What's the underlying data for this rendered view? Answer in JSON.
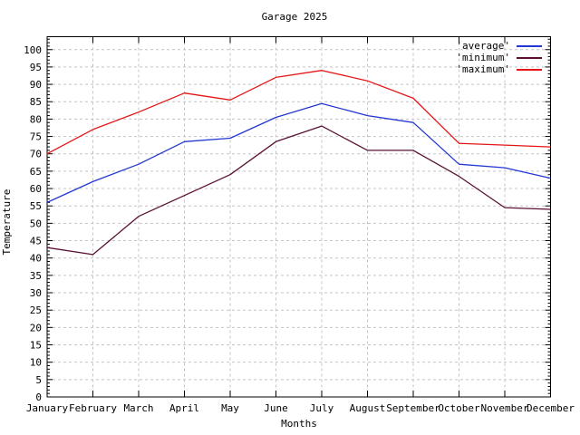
{
  "chart_data": {
    "type": "line",
    "title": "Garage 2025",
    "xlabel": "Months",
    "ylabel": "Temperature",
    "categories": [
      "January",
      "February",
      "March",
      "April",
      "May",
      "June",
      "July",
      "August",
      "September",
      "October",
      "November",
      "December"
    ],
    "series": [
      {
        "name": "average",
        "legend_label": "'average'",
        "color": "#2337d2",
        "values": [
          56,
          62,
          67,
          73.5,
          74.5,
          80.5,
          84.5,
          81,
          79,
          67,
          66,
          63
        ]
      },
      {
        "name": "minimum",
        "legend_label": "'minimum'",
        "color": "#5a1135",
        "values": [
          43,
          41,
          52,
          58,
          64,
          73.5,
          78,
          71,
          71,
          63.5,
          54.5,
          54
        ]
      },
      {
        "name": "maximum",
        "legend_label": "'maximum'",
        "color": "#e31616",
        "values": [
          70,
          77,
          82,
          87.5,
          85.5,
          92,
          94,
          91,
          86,
          73,
          72.5,
          72
        ]
      }
    ],
    "ylim": [
      0,
      100
    ],
    "ytick_step": 5,
    "ytick_labels": [
      "0",
      "5",
      "10",
      "15",
      "20",
      "25",
      "30",
      "35",
      "40",
      "45",
      "50",
      "55",
      "60",
      "65",
      "70",
      "75",
      "80",
      "85",
      "90",
      "95",
      "100"
    ],
    "grid": true,
    "legend_position": "top-right",
    "colors": {
      "border": "#000000",
      "grid": "#c4c4c4",
      "background": "#ffffff"
    }
  }
}
